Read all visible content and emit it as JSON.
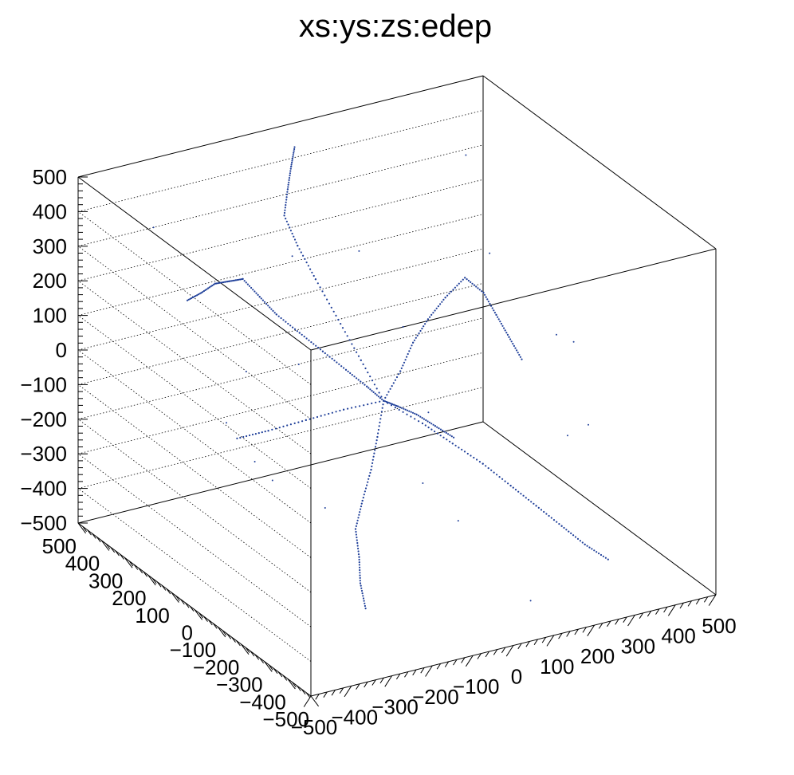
{
  "chart_data": {
    "type": "scatter",
    "title": "xs:ys:zs:edep",
    "xlabel": "",
    "ylabel": "",
    "zlabel": "",
    "xlim": [
      -500,
      500
    ],
    "ylim": [
      -500,
      500
    ],
    "zlim": [
      -500,
      500
    ],
    "x_ticks": [
      "−500",
      "−400",
      "−300",
      "−200",
      "−100",
      "0",
      "100",
      "200",
      "300",
      "400",
      "500"
    ],
    "y_ticks": [
      "−500",
      "−400",
      "−300",
      "−200",
      "−100",
      "0",
      "100",
      "200",
      "300",
      "400",
      "500"
    ],
    "z_ticks": [
      "−500",
      "−400",
      "−300",
      "−200",
      "−100",
      "0",
      "100",
      "200",
      "300",
      "400",
      "500"
    ],
    "grid": true,
    "legend": "none",
    "marker_color": "#1f3f99",
    "tracks": [
      {
        "points": [
          [
            -10,
            40,
            -60
          ],
          [
            20,
            30,
            -80
          ],
          [
            60,
            20,
            -110
          ],
          [
            100,
            10,
            -150
          ],
          [
            140,
            0,
            -190
          ]
        ]
      },
      {
        "points": [
          [
            -10,
            40,
            -60
          ],
          [
            -40,
            60,
            -20
          ],
          [
            -80,
            80,
            30
          ],
          [
            -120,
            110,
            80
          ],
          [
            -160,
            140,
            130
          ],
          [
            -200,
            170,
            180
          ],
          [
            -230,
            190,
            230
          ],
          [
            -260,
            210,
            280
          ]
        ]
      },
      {
        "points": [
          [
            -260,
            210,
            280
          ],
          [
            -300,
            200,
            290
          ],
          [
            -340,
            190,
            300
          ],
          [
            -380,
            180,
            290
          ],
          [
            -420,
            170,
            285
          ]
        ]
      },
      {
        "points": [
          [
            -10,
            40,
            -60
          ],
          [
            -20,
            120,
            20
          ],
          [
            -30,
            200,
            100
          ],
          [
            -40,
            280,
            180
          ],
          [
            -50,
            340,
            250
          ],
          [
            -60,
            380,
            320
          ]
        ]
      },
      {
        "points": [
          [
            -60,
            380,
            320
          ],
          [
            -40,
            400,
            380
          ],
          [
            -20,
            420,
            430
          ],
          [
            0,
            440,
            470
          ]
        ]
      },
      {
        "points": [
          [
            -10,
            40,
            -60
          ],
          [
            -60,
            -20,
            -120
          ],
          [
            -110,
            -80,
            -170
          ],
          [
            -160,
            -130,
            -220
          ],
          [
            -200,
            -170,
            -270
          ]
        ]
      },
      {
        "points": [
          [
            -10,
            40,
            -60
          ],
          [
            40,
            -40,
            -100
          ],
          [
            80,
            -100,
            -140
          ],
          [
            120,
            -160,
            -180
          ],
          [
            160,
            -210,
            -230
          ]
        ]
      },
      {
        "points": [
          [
            -10,
            40,
            -60
          ],
          [
            60,
            90,
            -20
          ],
          [
            120,
            140,
            20
          ],
          [
            180,
            180,
            50
          ],
          [
            240,
            210,
            80
          ],
          [
            300,
            230,
            110
          ]
        ]
      },
      {
        "points": [
          [
            -10,
            40,
            -60
          ],
          [
            -80,
            90,
            -90
          ],
          [
            -150,
            130,
            -120
          ],
          [
            -220,
            170,
            -150
          ],
          [
            -280,
            200,
            -170
          ]
        ]
      },
      {
        "points": [
          [
            -200,
            -170,
            -270
          ],
          [
            -220,
            -220,
            -320
          ],
          [
            -240,
            -260,
            -370
          ],
          [
            -250,
            -300,
            -420
          ]
        ]
      },
      {
        "points": [
          [
            160,
            -210,
            -230
          ],
          [
            200,
            -250,
            -280
          ],
          [
            240,
            -290,
            -330
          ],
          [
            280,
            -320,
            -380
          ],
          [
            320,
            -350,
            -420
          ]
        ]
      },
      {
        "points": [
          [
            300,
            230,
            110
          ],
          [
            340,
            220,
            60
          ],
          [
            360,
            200,
            0
          ],
          [
            380,
            180,
            -60
          ],
          [
            400,
            160,
            -120
          ]
        ]
      }
    ],
    "scatter_points": [
      [
        -300,
        -100,
        200
      ],
      [
        250,
        300,
        -300
      ],
      [
        -400,
        350,
        400
      ],
      [
        100,
        -400,
        -450
      ],
      [
        350,
        -150,
        100
      ],
      [
        -150,
        350,
        -350
      ],
      [
        400,
        400,
        350
      ],
      [
        -350,
        -300,
        -100
      ],
      [
        50,
        250,
        250
      ],
      [
        200,
        -50,
        350
      ],
      [
        -250,
        100,
        -250
      ],
      [
        300,
        -300,
        -50
      ],
      [
        -100,
        -200,
        300
      ],
      [
        150,
        150,
        -400
      ],
      [
        -50,
        -350,
        -200
      ],
      [
        450,
        50,
        -300
      ],
      [
        -450,
        -50,
        50
      ],
      [
        0,
        450,
        150
      ],
      [
        250,
        -250,
        200
      ],
      [
        -200,
        300,
        -50
      ]
    ]
  }
}
